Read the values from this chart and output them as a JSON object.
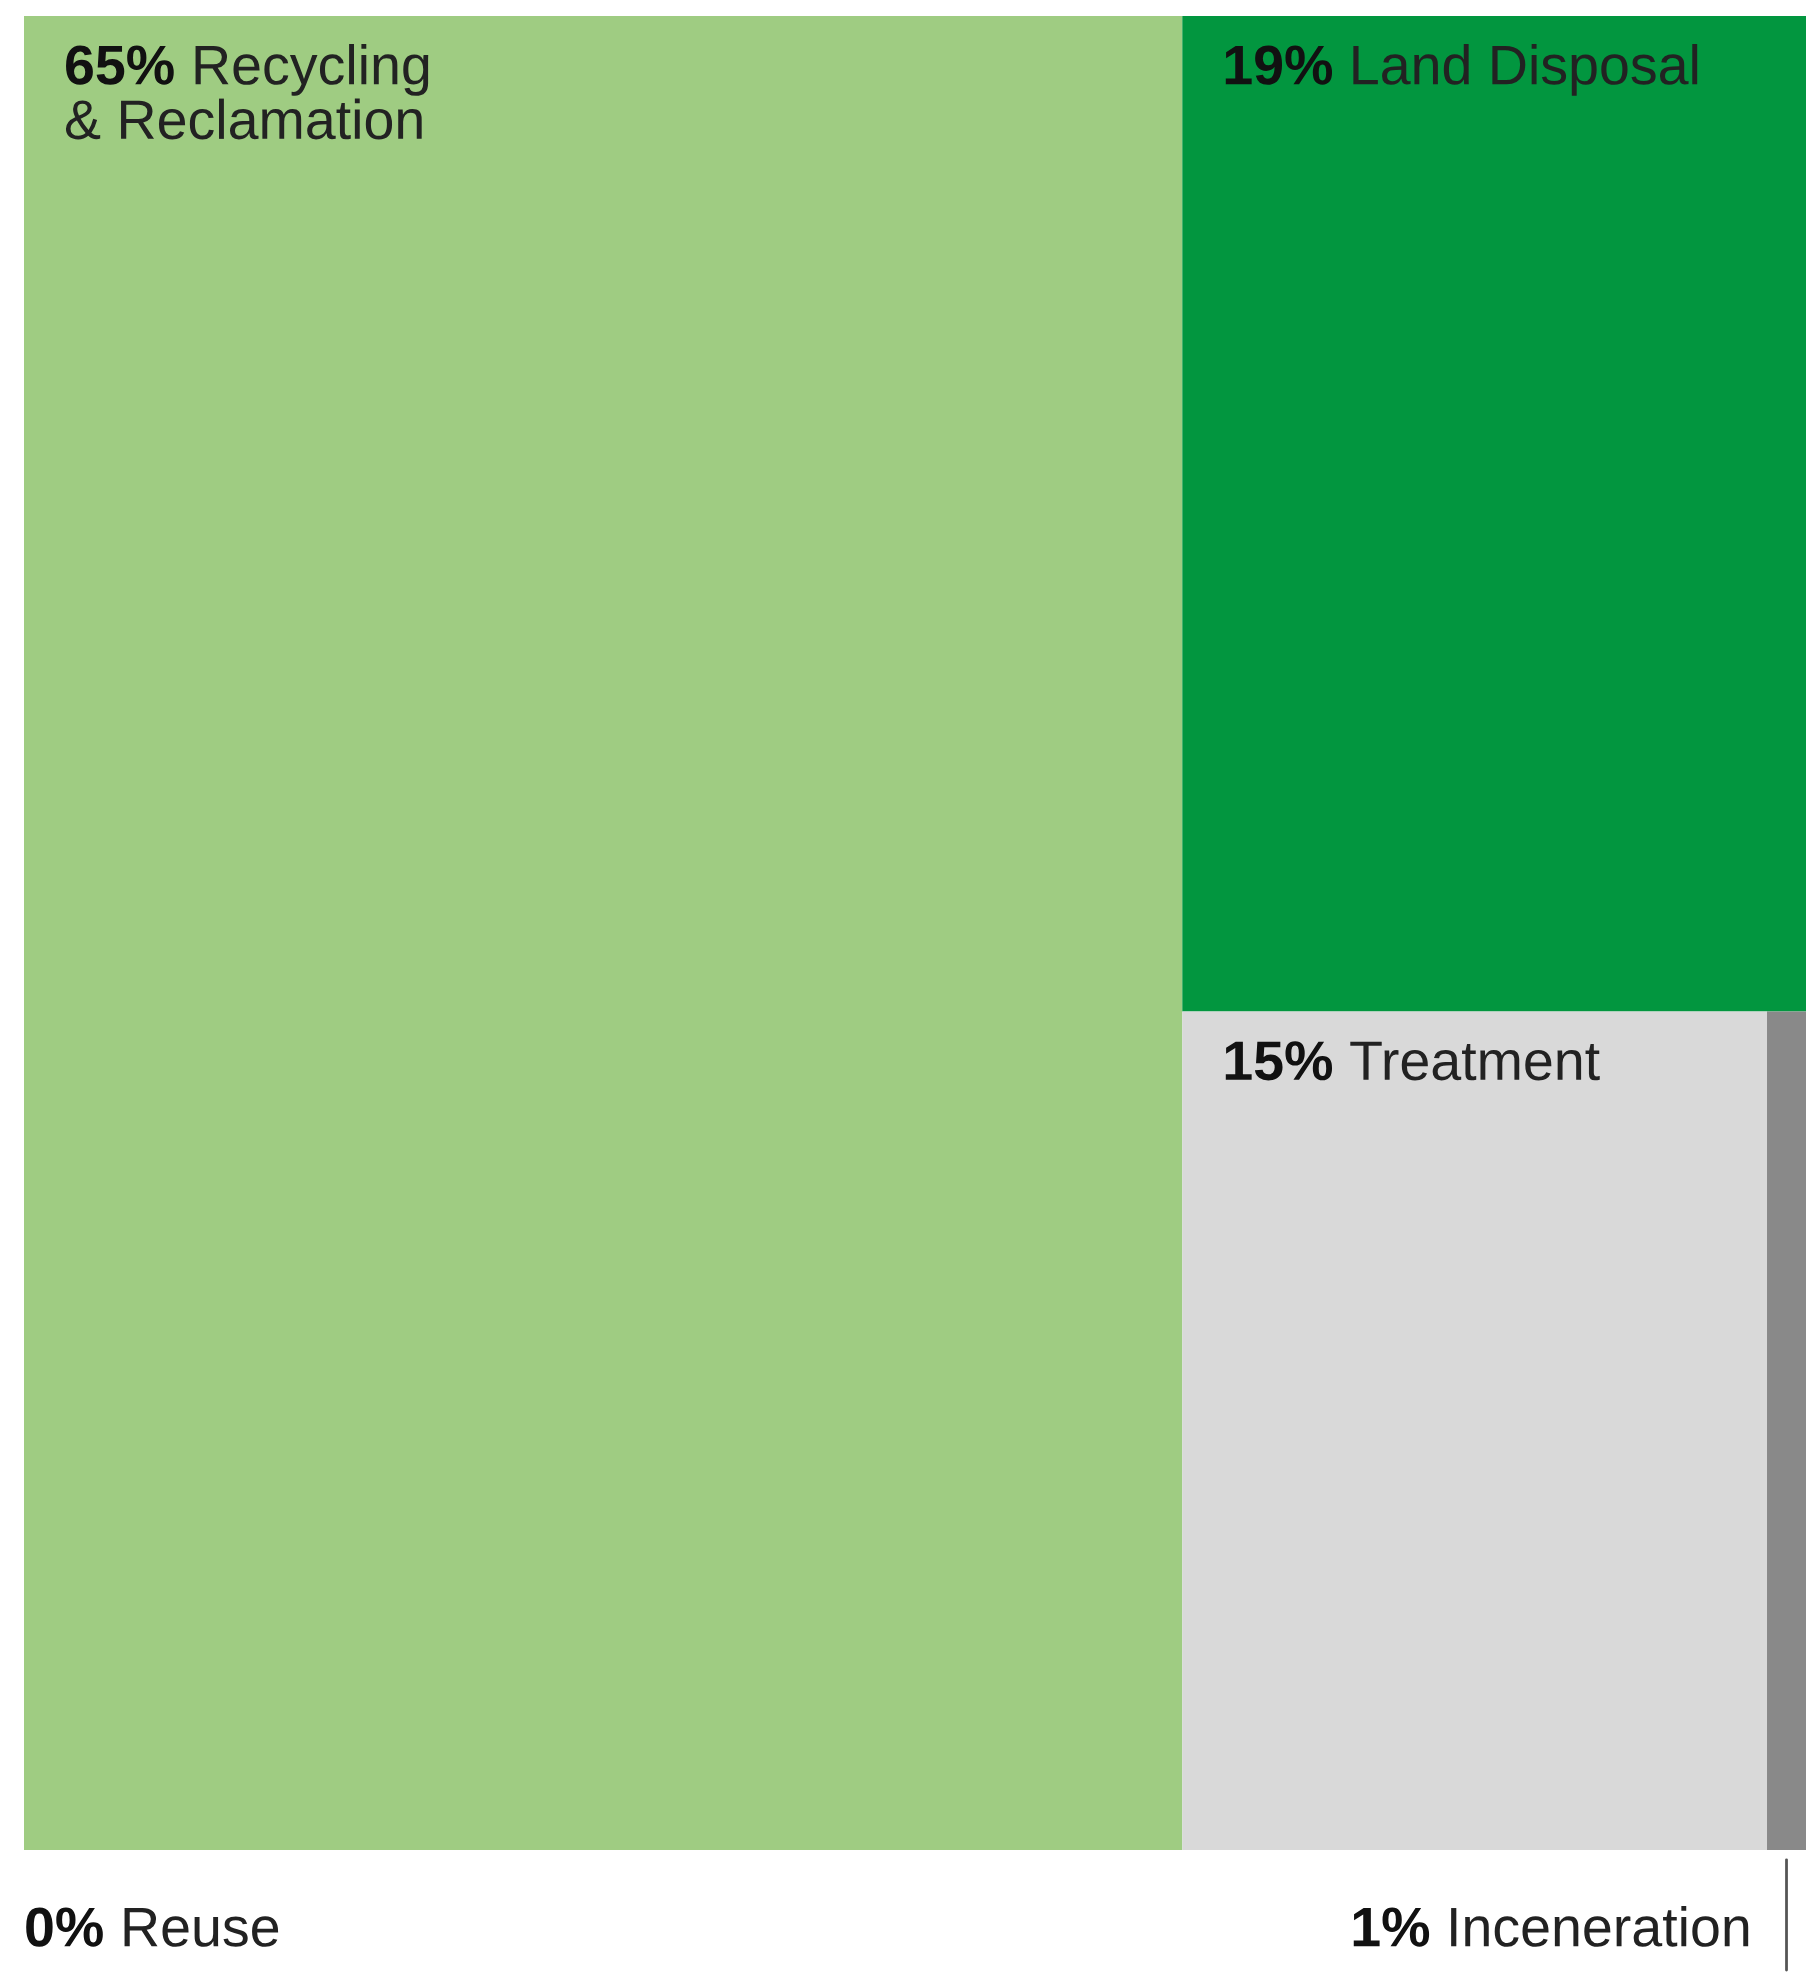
{
  "chart_data": {
    "type": "other",
    "categories": [
      "Recycling\n& Reclamation",
      "Land Disposal",
      "Treatment",
      "Inceneration",
      "Reuse"
    ],
    "values": [
      65,
      19,
      15,
      1,
      0
    ],
    "value_labels": [
      "65%",
      "19%",
      "15%",
      "1%",
      "0%"
    ],
    "colors": [
      "#9fcc82",
      "#02963f",
      "#d9d9d9",
      "#898989",
      null
    ]
  }
}
